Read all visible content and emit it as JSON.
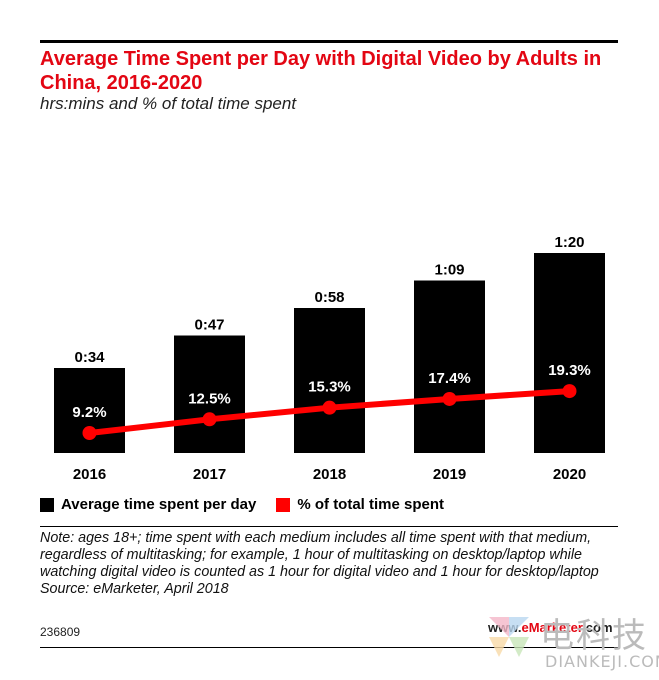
{
  "header": {
    "title": "Average Time Spent per Day with Digital Video by Adults in China, 2016-2020",
    "subtitle": "hrs:mins and % of total time spent"
  },
  "chart_data": {
    "type": "bar",
    "categories": [
      "2016",
      "2017",
      "2018",
      "2019",
      "2020"
    ],
    "series": [
      {
        "name": "Average time spent per day",
        "kind": "bar",
        "values_minutes": [
          34,
          47,
          58,
          69,
          80
        ],
        "labels": [
          "0:34",
          "0:47",
          "0:58",
          "1:09",
          "1:20"
        ],
        "color": "#000000"
      },
      {
        "name": "% of total time spent",
        "kind": "line",
        "values": [
          9.2,
          12.5,
          15.3,
          17.4,
          19.3
        ],
        "labels": [
          "9.2%",
          "12.5%",
          "15.3%",
          "17.4%",
          "19.3%"
        ],
        "color": "#ff0000"
      }
    ],
    "grid": false,
    "legend_position": "bottom-left"
  },
  "legend": {
    "items": [
      {
        "label": "Average time spent per day",
        "color": "#000000"
      },
      {
        "label": "% of total time spent",
        "color": "#ff0000"
      }
    ]
  },
  "footer": {
    "note": "Note: ages 18+; time spent with each medium includes all time spent with that medium, regardless of multitasking; for example, 1 hour of multitasking on desktop/laptop while watching digital video is counted as 1 hour for digital video and 1 hour for desktop/laptop",
    "source": "Source: eMarketer, April 2018",
    "chart_id": "236809",
    "brand_prefix": "www.",
    "brand_highlight": "eMarketer",
    "brand_suffix": ".com"
  },
  "watermark": {
    "chinese": "电科技",
    "english": "DIANKEJI.COM"
  }
}
